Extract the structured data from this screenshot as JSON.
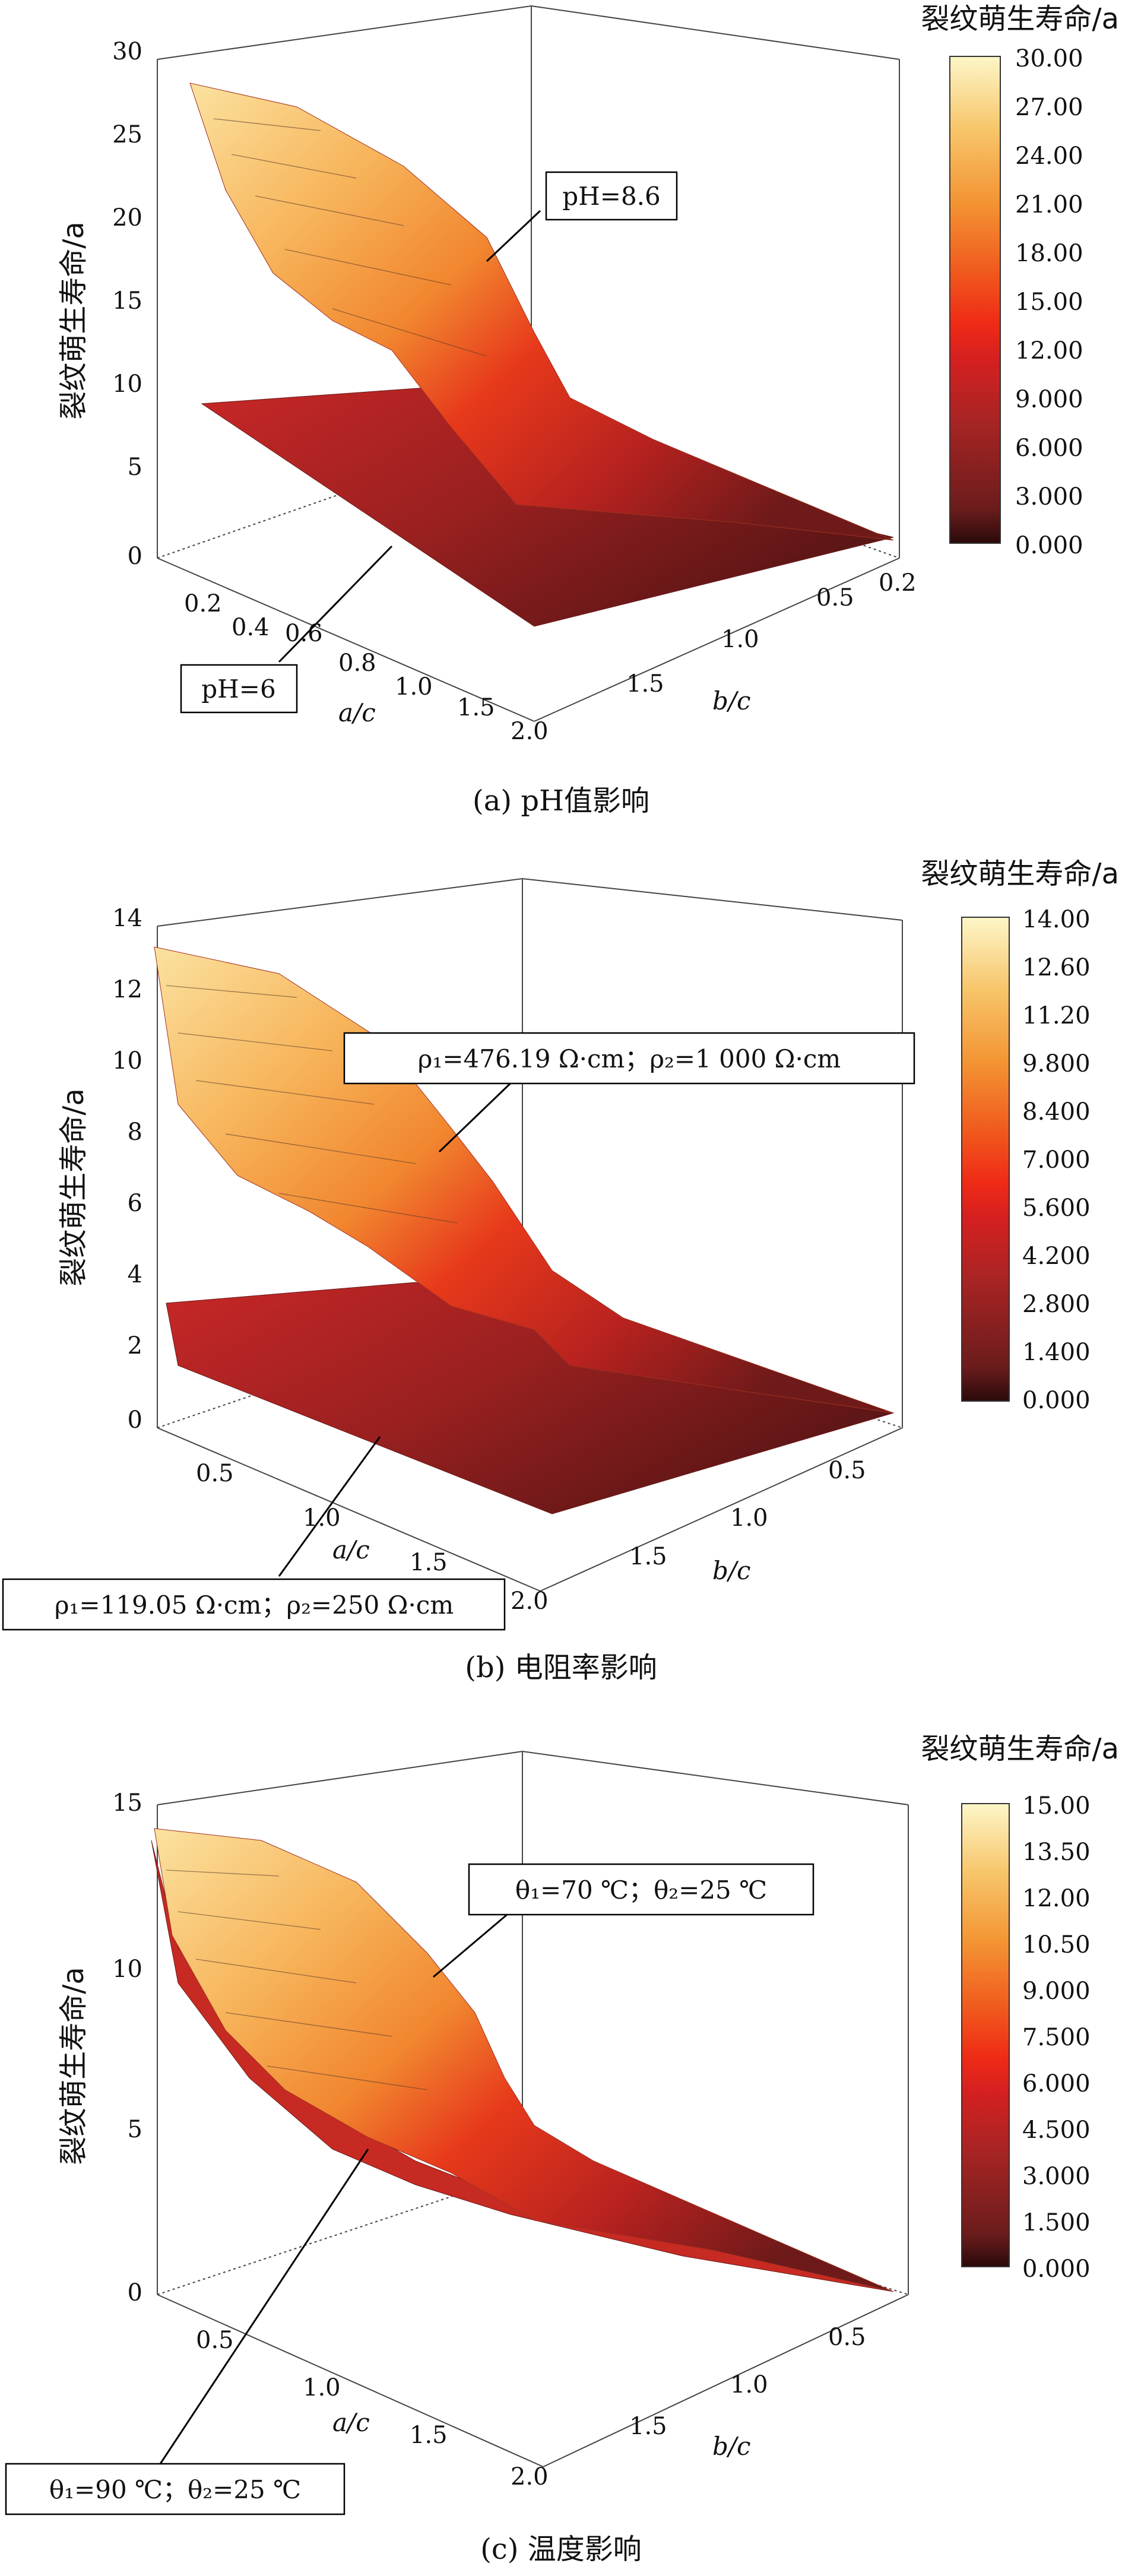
{
  "colorbar_title": "裂纹萌生寿命/a",
  "z_axis_label": "裂纹萌生寿命/a",
  "axis_label_ac": "a/c",
  "axis_label_bc": "b/c",
  "panels": [
    {
      "caption": "(a) pH值影响",
      "z_ticks": [
        "0",
        "5",
        "10",
        "15",
        "20",
        "25",
        "30"
      ],
      "ac_ticks": [
        "0.2",
        "0.4",
        "0.6",
        "0.8",
        "1.0",
        "1.5",
        "2.0"
      ],
      "bc_ticks": [
        "0.2",
        "0.5",
        "1.0",
        "1.5"
      ],
      "colorbar_ticks": [
        "30.00",
        "27.00",
        "24.00",
        "21.00",
        "18.00",
        "15.00",
        "12.00",
        "9.000",
        "6.000",
        "3.000",
        "0.000"
      ],
      "annotation_upper": "pH=8.6",
      "annotation_lower": "pH=6"
    },
    {
      "caption": "(b) 电阻率影响",
      "z_ticks": [
        "0",
        "2",
        "4",
        "6",
        "8",
        "10",
        "12",
        "14"
      ],
      "ac_ticks": [
        "0.5",
        "1.0",
        "1.5",
        "2.0"
      ],
      "bc_ticks": [
        "0.5",
        "1.0",
        "1.5"
      ],
      "colorbar_ticks": [
        "14.00",
        "12.60",
        "11.20",
        "9.800",
        "8.400",
        "7.000",
        "5.600",
        "4.200",
        "2.800",
        "1.400",
        "0.000"
      ],
      "annotation_upper": "ρ₁=476.19 Ω·cm；ρ₂=1 000 Ω·cm",
      "annotation_lower": "ρ₁=119.05 Ω·cm；ρ₂=250 Ω·cm"
    },
    {
      "caption": "(c) 温度影响",
      "z_ticks": [
        "0",
        "5",
        "10",
        "15"
      ],
      "ac_ticks": [
        "0.5",
        "1.0",
        "1.5",
        "2.0"
      ],
      "bc_ticks": [
        "0.5",
        "1.0",
        "1.5"
      ],
      "colorbar_ticks": [
        "15.00",
        "13.50",
        "12.00",
        "10.50",
        "9.000",
        "7.500",
        "6.000",
        "4.500",
        "3.000",
        "1.500",
        "0.000"
      ],
      "annotation_upper": "θ₁=70 ℃；θ₂=25 ℃",
      "annotation_lower": "θ₁=90 ℃；θ₂=25 ℃"
    }
  ],
  "chart_data": [
    {
      "type": "surface",
      "z_range": [
        0,
        30
      ],
      "colorbar_range": [
        0,
        30
      ],
      "series": [
        {
          "name": "pH=8.6",
          "peak_value": 28,
          "min_value": 0.5
        },
        {
          "name": "pH=6",
          "peak_value": 9.5,
          "min_value": 0.5
        }
      ]
    },
    {
      "type": "surface",
      "z_range": [
        0,
        14
      ],
      "colorbar_range": [
        0,
        14
      ],
      "series": [
        {
          "name": "ρ₁=476.19 Ω·cm；ρ₂=1 000 Ω·cm",
          "peak_value": 13.2,
          "min_value": 0.3
        },
        {
          "name": "ρ₁=119.05 Ω·cm；ρ₂=250 Ω·cm",
          "peak_value": 3.3,
          "min_value": 0.2
        }
      ]
    },
    {
      "type": "surface",
      "z_range": [
        0,
        15
      ],
      "colorbar_range": [
        0,
        15
      ],
      "series": [
        {
          "name": "θ₁=70 ℃；θ₂=25 ℃",
          "peak_value": 14,
          "min_value": 0.3
        },
        {
          "name": "θ₁=90 ℃；θ₂=25 ℃",
          "peak_value": 12.8,
          "min_value": 0.2
        }
      ]
    }
  ]
}
